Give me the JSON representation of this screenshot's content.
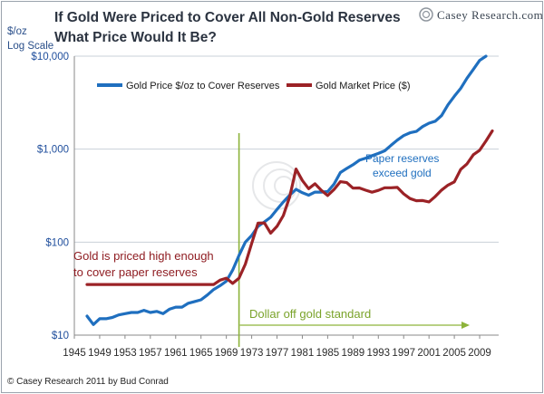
{
  "chart_data": {
    "type": "line",
    "title_line1": "If Gold Were Priced to Cover All Non-Gold Reserves",
    "title_line2": "What Price Would It Be?",
    "ylabel_line1": "$/oz",
    "ylabel_line2": "Log Scale",
    "yscale": "log",
    "ylim": [
      10,
      10000
    ],
    "xlim": [
      1945,
      2012
    ],
    "yticks": [
      {
        "value": 10,
        "label": "$10"
      },
      {
        "value": 100,
        "label": "$100"
      },
      {
        "value": 1000,
        "label": "$1,000"
      },
      {
        "value": 10000,
        "label": "$10,000"
      }
    ],
    "xticks": [
      1945,
      1949,
      1953,
      1957,
      1961,
      1965,
      1969,
      1973,
      1977,
      1981,
      1985,
      1989,
      1993,
      1997,
      2001,
      2005,
      2009
    ],
    "xtick_labels": [
      "1945",
      "1949",
      "1953",
      "1957",
      "1961",
      "1965",
      "1969",
      "1973",
      "1977",
      "1981",
      "1985",
      "1989",
      "1993",
      "1997",
      "2001",
      "2005",
      "2009"
    ],
    "grid": "horizontal",
    "legend_position": "top",
    "series": [
      {
        "name": "Gold Price $/oz to Cover Reserves",
        "color": "#1f6fbf",
        "x": [
          1947,
          1948,
          1949,
          1950,
          1951,
          1952,
          1953,
          1954,
          1955,
          1956,
          1957,
          1958,
          1959,
          1960,
          1961,
          1962,
          1963,
          1964,
          1965,
          1966,
          1967,
          1968,
          1969,
          1970,
          1971,
          1972,
          1973,
          1974,
          1975,
          1976,
          1977,
          1978,
          1979,
          1980,
          1981,
          1982,
          1983,
          1984,
          1985,
          1986,
          1987,
          1988,
          1989,
          1990,
          1991,
          1992,
          1993,
          1994,
          1995,
          1996,
          1997,
          1998,
          1999,
          2000,
          2001,
          2002,
          2003,
          2004,
          2005,
          2006,
          2007,
          2008,
          2009,
          2010
        ],
        "y": [
          16,
          13,
          15,
          15,
          15.5,
          16.5,
          17,
          17.5,
          17.5,
          18.5,
          17.5,
          18,
          17,
          19,
          20,
          20,
          22,
          23,
          24,
          27,
          31,
          34,
          38,
          50,
          72,
          100,
          118,
          148,
          165,
          185,
          225,
          270,
          320,
          370,
          340,
          320,
          345,
          345,
          350,
          420,
          560,
          620,
          680,
          760,
          800,
          850,
          900,
          960,
          1100,
          1250,
          1400,
          1500,
          1550,
          1750,
          1900,
          2000,
          2300,
          3000,
          3700,
          4500,
          5800,
          7200,
          9000,
          10000
        ]
      },
      {
        "name": "Gold Market Price ($)",
        "color": "#9b2226",
        "x": [
          1947,
          1948,
          1949,
          1950,
          1951,
          1952,
          1953,
          1954,
          1955,
          1956,
          1957,
          1958,
          1959,
          1960,
          1961,
          1962,
          1963,
          1964,
          1965,
          1966,
          1967,
          1968,
          1969,
          1970,
          1971,
          1972,
          1973,
          1974,
          1975,
          1976,
          1977,
          1978,
          1979,
          1980,
          1981,
          1982,
          1983,
          1984,
          1985,
          1986,
          1987,
          1988,
          1989,
          1990,
          1991,
          1992,
          1993,
          1994,
          1995,
          1996,
          1997,
          1998,
          1999,
          2000,
          2001,
          2002,
          2003,
          2004,
          2005,
          2006,
          2007,
          2008,
          2009,
          2010,
          2011
        ],
        "y": [
          35,
          35,
          35,
          35,
          35,
          35,
          35,
          35,
          35,
          35,
          35,
          35,
          35,
          35,
          35,
          35,
          35,
          35,
          35,
          35,
          35,
          39,
          41,
          36,
          41,
          58,
          97,
          160,
          161,
          125,
          148,
          193,
          307,
          612,
          460,
          376,
          424,
          361,
          317,
          368,
          447,
          437,
          381,
          383,
          362,
          344,
          360,
          384,
          384,
          388,
          331,
          294,
          279,
          280,
          271,
          310,
          363,
          410,
          445,
          604,
          695,
          872,
          972,
          1225,
          1572
        ]
      }
    ],
    "annotations": {
      "left_line1": "Gold is priced high enough",
      "left_line2": "to cover paper reserves",
      "right_line1": "Paper reserves",
      "right_line2": "exceed gold",
      "standard": "Dollar off gold standard",
      "standard_year": 1971
    },
    "colors": {
      "vline": "#8db33a",
      "grid": "#c9d0d8"
    }
  },
  "brand": {
    "text": "Casey Research.com",
    "icon": "swirl-logo-icon"
  },
  "footer": {
    "copyright": "© Casey Research 2011 by Bud Conrad"
  }
}
